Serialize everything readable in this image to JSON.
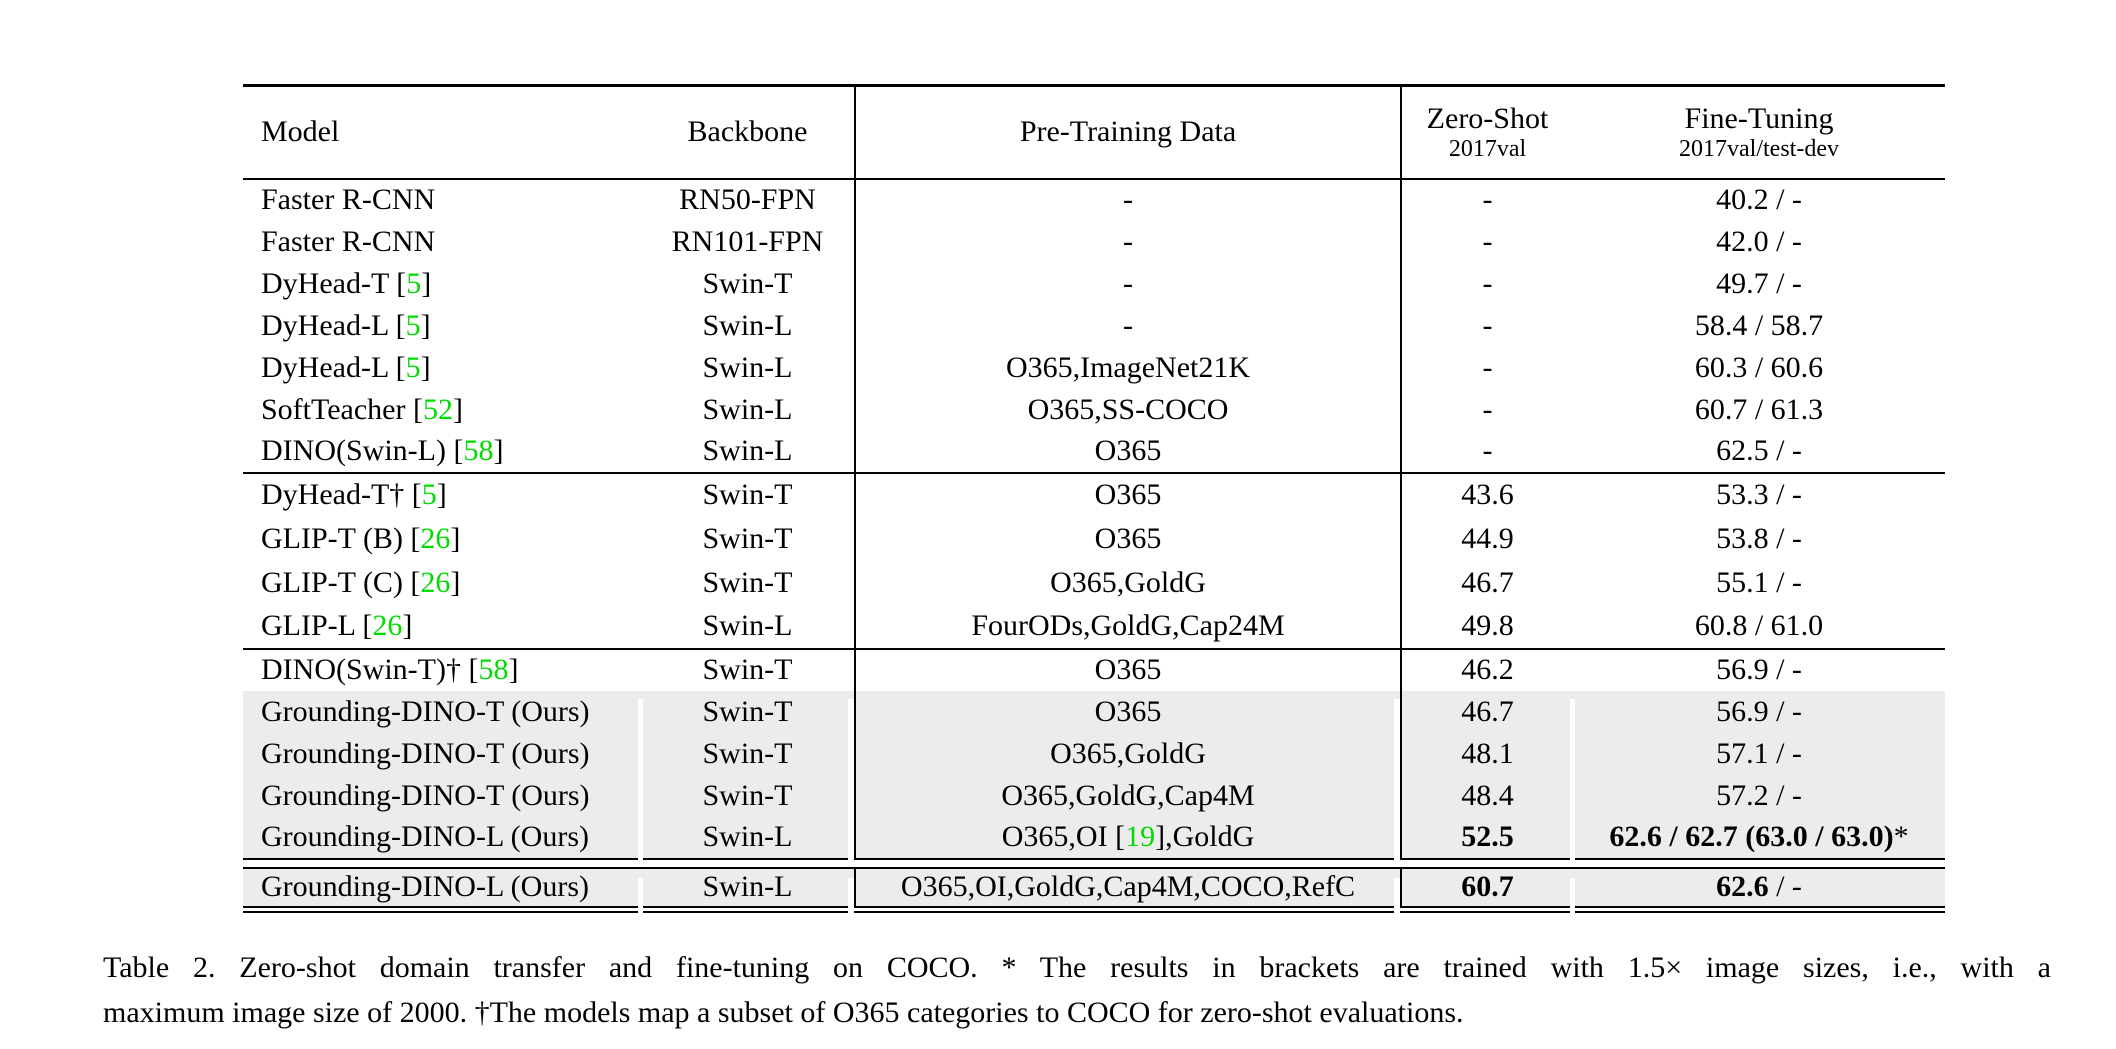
{
  "colors": {
    "cite_green": "#00DC00",
    "row_highlight": "#ECECEC",
    "rule_black": "#000000"
  },
  "header": {
    "columns": [
      {
        "key": "model",
        "label": "Model"
      },
      {
        "key": "backbone",
        "label": "Backbone"
      },
      {
        "key": "pretrain",
        "label": "Pre-Training Data"
      },
      {
        "key": "zeroshot",
        "label": "Zero-Shot",
        "sublabel": "2017val"
      },
      {
        "key": "finetune",
        "label": "Fine-Tuning",
        "sublabel": "2017val/test-dev"
      }
    ]
  },
  "sections": [
    {
      "name": "closed-set-detectors",
      "rows": [
        {
          "highlight": false,
          "cells": {
            "model": "Faster R-CNN",
            "backbone": "RN50-FPN",
            "pretrain": "-",
            "zeroshot": "-",
            "finetune": "40.2 / -"
          }
        },
        {
          "highlight": false,
          "cells": {
            "model": "Faster R-CNN",
            "backbone": "RN101-FPN",
            "pretrain": "-",
            "zeroshot": "-",
            "finetune": "42.0 / -"
          }
        },
        {
          "highlight": false,
          "cells": {
            "model": [
              {
                "t": "DyHead-T ["
              },
              {
                "t": "5",
                "cite": true
              },
              {
                "t": "]"
              }
            ],
            "backbone": "Swin-T",
            "pretrain": "-",
            "zeroshot": "-",
            "finetune": "49.7 / -"
          }
        },
        {
          "highlight": false,
          "cells": {
            "model": [
              {
                "t": "DyHead-L ["
              },
              {
                "t": "5",
                "cite": true
              },
              {
                "t": "]"
              }
            ],
            "backbone": "Swin-L",
            "pretrain": "-",
            "zeroshot": "-",
            "finetune": "58.4 / 58.7"
          }
        },
        {
          "highlight": false,
          "cells": {
            "model": [
              {
                "t": "DyHead-L ["
              },
              {
                "t": "5",
                "cite": true
              },
              {
                "t": "]"
              }
            ],
            "backbone": "Swin-L",
            "pretrain": "O365,ImageNet21K",
            "zeroshot": "-",
            "finetune": "60.3 / 60.6"
          }
        },
        {
          "highlight": false,
          "cells": {
            "model": [
              {
                "t": "SoftTeacher ["
              },
              {
                "t": "52",
                "cite": true
              },
              {
                "t": "]"
              }
            ],
            "backbone": "Swin-L",
            "pretrain": "O365,SS-COCO",
            "zeroshot": "-",
            "finetune": "60.7 / 61.3"
          }
        },
        {
          "highlight": false,
          "cells": {
            "model": [
              {
                "t": "DINO(Swin-L) ["
              },
              {
                "t": "58",
                "cite": true
              },
              {
                "t": "]"
              }
            ],
            "backbone": "Swin-L",
            "pretrain": "O365",
            "zeroshot": "-",
            "finetune": "62.5 / -"
          }
        }
      ]
    },
    {
      "name": "zero-shot-transfer-baselines",
      "rows": [
        {
          "highlight": false,
          "cells": {
            "model": [
              {
                "t": "DyHead-T† ["
              },
              {
                "t": "5",
                "cite": true
              },
              {
                "t": "]"
              }
            ],
            "backbone": "Swin-T",
            "pretrain": "O365",
            "zeroshot": "43.6",
            "finetune": "53.3 / -"
          }
        },
        {
          "highlight": false,
          "cells": {
            "model": [
              {
                "t": "GLIP-T (B) ["
              },
              {
                "t": "26",
                "cite": true
              },
              {
                "t": "]"
              }
            ],
            "backbone": "Swin-T",
            "pretrain": "O365",
            "zeroshot": "44.9",
            "finetune": "53.8 / -"
          }
        },
        {
          "highlight": false,
          "cells": {
            "model": [
              {
                "t": "GLIP-T (C) ["
              },
              {
                "t": "26",
                "cite": true
              },
              {
                "t": "]"
              }
            ],
            "backbone": "Swin-T",
            "pretrain": "O365,GoldG",
            "zeroshot": "46.7",
            "finetune": "55.1 / -"
          }
        },
        {
          "highlight": false,
          "cells": {
            "model": [
              {
                "t": "GLIP-L ["
              },
              {
                "t": "26",
                "cite": true
              },
              {
                "t": "]"
              }
            ],
            "backbone": "Swin-L",
            "pretrain": "FourODs,GoldG,Cap24M",
            "zeroshot": "49.8",
            "finetune": "60.8 / 61.0"
          }
        }
      ]
    },
    {
      "name": "grounding-dino",
      "rows": [
        {
          "highlight": false,
          "cells": {
            "model": [
              {
                "t": "DINO(Swin-T)† ["
              },
              {
                "t": "58",
                "cite": true
              },
              {
                "t": "]"
              }
            ],
            "backbone": "Swin-T",
            "pretrain": "O365",
            "zeroshot": "46.2",
            "finetune": "56.9 / -"
          }
        },
        {
          "highlight": true,
          "cells": {
            "model": "Grounding-DINO-T (Ours)",
            "backbone": "Swin-T",
            "pretrain": "O365",
            "zeroshot": "46.7",
            "finetune": "56.9 / -"
          }
        },
        {
          "highlight": true,
          "cells": {
            "model": "Grounding-DINO-T (Ours)",
            "backbone": "Swin-T",
            "pretrain": "O365,GoldG",
            "zeroshot": "48.1",
            "finetune": "57.1 / -"
          }
        },
        {
          "highlight": true,
          "cells": {
            "model": "Grounding-DINO-T (Ours)",
            "backbone": "Swin-T",
            "pretrain": "O365,GoldG,Cap4M",
            "zeroshot": "48.4",
            "finetune": "57.2 / -"
          }
        },
        {
          "highlight": true,
          "cells": {
            "model": "Grounding-DINO-L (Ours)",
            "backbone": "Swin-L",
            "pretrain": [
              {
                "t": "O365,OI ["
              },
              {
                "t": "19",
                "cite": true
              },
              {
                "t": "],GoldG"
              }
            ],
            "zeroshot": [
              {
                "t": "52.5",
                "b": true
              }
            ],
            "finetune": [
              {
                "t": "62.6 / 62.7 (63.0 / 63.0)",
                "b": true
              },
              {
                "t": "*"
              }
            ]
          }
        }
      ]
    },
    {
      "name": "grounding-dino-full-data",
      "rows": [
        {
          "highlight": true,
          "cells": {
            "model": "Grounding-DINO-L (Ours)",
            "backbone": "Swin-L",
            "pretrain": "O365,OI,GoldG,Cap4M,COCO,RefC",
            "zeroshot": [
              {
                "t": "60.7",
                "b": true
              }
            ],
            "finetune": [
              {
                "t": "62.6",
                "b": true
              },
              {
                "t": " / -"
              }
            ]
          }
        }
      ]
    }
  ],
  "caption": {
    "line1": "Table 2.  Zero-shot domain transfer and fine-tuning on COCO. * The results in brackets are trained with 1.5× image sizes, i.e., with a",
    "line2": "maximum image size of 2000. †The models map a subset of O365 categories to COCO for zero-shot evaluations."
  }
}
